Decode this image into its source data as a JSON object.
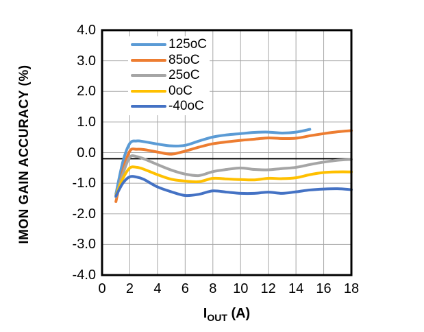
{
  "figure": {
    "y_axis_title": "IMON GAIN ACCURACY (%)",
    "x_axis_title": {
      "base": "I",
      "sub": "OUT",
      "rest": " (A)"
    }
  },
  "chart_data": {
    "type": "line",
    "title": "",
    "xlabel": "IOUT (A)",
    "ylabel": "IMON GAIN ACCURACY (%)",
    "xlim": [
      0,
      18
    ],
    "ylim": [
      -4.0,
      4.0
    ],
    "x_ticks": [
      "0",
      "2",
      "4",
      "6",
      "8",
      "10",
      "12",
      "14",
      "16",
      "18"
    ],
    "y_ticks": [
      "4.0",
      "3.0",
      "2.0",
      "1.0",
      "0.0",
      "-1.0",
      "-2.0",
      "-3.0",
      "-4.0"
    ],
    "grid": true,
    "grid_color": "#a6a6a6",
    "axis_color": "#000000",
    "zero_line_y": -0.2,
    "legend_position": "top-left-inside",
    "series": [
      {
        "name": "125oC",
        "color": "#5b9bd5",
        "x": [
          1,
          1.5,
          2,
          2.5,
          3,
          4,
          5,
          6,
          7,
          8,
          9,
          10,
          11,
          12,
          13,
          14,
          15
        ],
        "y": [
          -1.35,
          -0.3,
          0.3,
          0.38,
          0.36,
          0.28,
          0.22,
          0.24,
          0.38,
          0.51,
          0.58,
          0.62,
          0.66,
          0.67,
          0.64,
          0.67,
          0.76
        ]
      },
      {
        "name": "85oC",
        "color": "#ed7d31",
        "x": [
          1,
          1.5,
          2,
          2.5,
          3,
          4,
          5,
          6,
          7,
          8,
          9,
          10,
          11,
          12,
          13,
          14,
          15,
          16,
          17,
          18
        ],
        "y": [
          -1.6,
          -0.6,
          0.05,
          0.11,
          0.1,
          0.02,
          -0.05,
          0.05,
          0.18,
          0.29,
          0.35,
          0.4,
          0.44,
          0.48,
          0.46,
          0.47,
          0.55,
          0.62,
          0.68,
          0.72
        ]
      },
      {
        "name": "25oC",
        "color": "#a5a5a5",
        "x": [
          1,
          1.5,
          2,
          2.5,
          3,
          4,
          5,
          6,
          7,
          8,
          9,
          10,
          11,
          12,
          13,
          14,
          15,
          16,
          17,
          18
        ],
        "y": [
          -1.45,
          -0.7,
          -0.15,
          -0.13,
          -0.2,
          -0.39,
          -0.57,
          -0.7,
          -0.75,
          -0.62,
          -0.55,
          -0.5,
          -0.55,
          -0.56,
          -0.52,
          -0.48,
          -0.39,
          -0.31,
          -0.25,
          -0.22
        ]
      },
      {
        "name": "0oC",
        "color": "#ffc000",
        "x": [
          1,
          1.5,
          2,
          2.5,
          3,
          4,
          5,
          6,
          7,
          8,
          9,
          10,
          11,
          12,
          13,
          14,
          15,
          16,
          17,
          18
        ],
        "y": [
          -1.4,
          -0.85,
          -0.5,
          -0.48,
          -0.54,
          -0.72,
          -0.87,
          -0.93,
          -0.95,
          -0.84,
          -0.86,
          -0.88,
          -0.89,
          -0.84,
          -0.85,
          -0.82,
          -0.72,
          -0.65,
          -0.63,
          -0.63
        ]
      },
      {
        "name": "-40oC",
        "color": "#4472c4",
        "x": [
          1,
          1.5,
          2,
          2.5,
          3,
          4,
          5,
          6,
          7,
          8,
          9,
          10,
          11,
          12,
          13,
          14,
          15,
          16,
          17,
          18
        ],
        "y": [
          -1.42,
          -1.0,
          -0.79,
          -0.8,
          -0.87,
          -1.12,
          -1.28,
          -1.4,
          -1.36,
          -1.25,
          -1.29,
          -1.33,
          -1.33,
          -1.29,
          -1.33,
          -1.28,
          -1.22,
          -1.19,
          -1.18,
          -1.21
        ]
      }
    ]
  }
}
